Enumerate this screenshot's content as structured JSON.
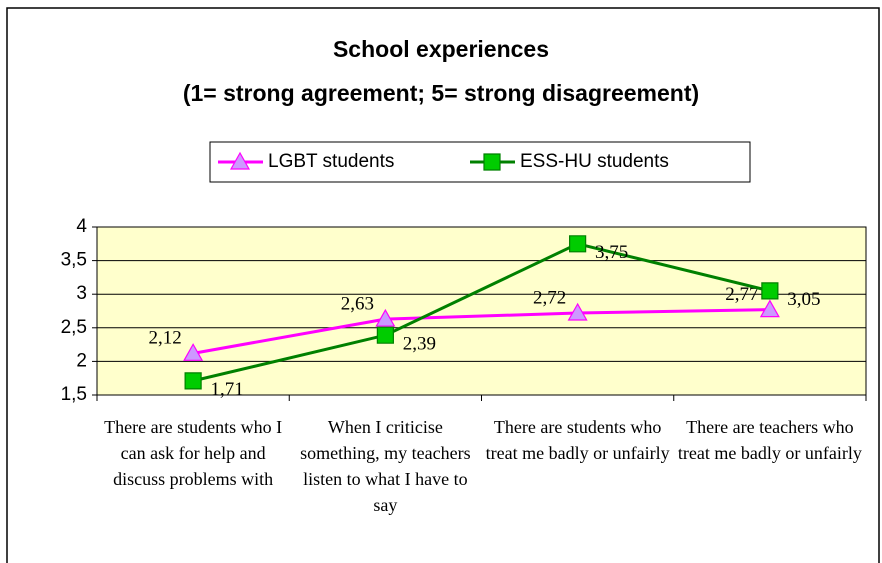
{
  "chart_data": {
    "type": "line",
    "title": "School experiences",
    "subtitle": "(1= strong agreement; 5= strong disagreement)",
    "categories": [
      "There are students who I can ask for help and discuss problems with",
      "When I criticise something, my teachers listen to what I have to say",
      "There are students who treat me badly or unfairly",
      "There are teachers who treat me badly or unfairly"
    ],
    "series": [
      {
        "name": "LGBT students",
        "color": "#ff00ff",
        "marker_color": "#cc99ff",
        "marker": "triangle",
        "values": [
          2.12,
          2.63,
          2.72,
          2.77
        ],
        "value_labels": [
          "2,12",
          "2,63",
          "2,72",
          "2,77"
        ]
      },
      {
        "name": "ESS-HU students",
        "color": "#008000",
        "marker_color": "#00cc00",
        "marker": "square",
        "values": [
          1.71,
          2.39,
          3.75,
          3.05
        ],
        "value_labels": [
          "1,71",
          "2,39",
          "3,75",
          "3,05"
        ]
      }
    ],
    "ylim": [
      1.5,
      4
    ],
    "yticks": [
      {
        "value": 1.5,
        "label": "1,5"
      },
      2,
      {
        "value": 2.5,
        "label": "2,5"
      },
      3,
      {
        "value": 3.5,
        "label": "3,5"
      },
      4
    ],
    "grid": true,
    "legend": "top",
    "plot_background": "#ffffcc"
  }
}
